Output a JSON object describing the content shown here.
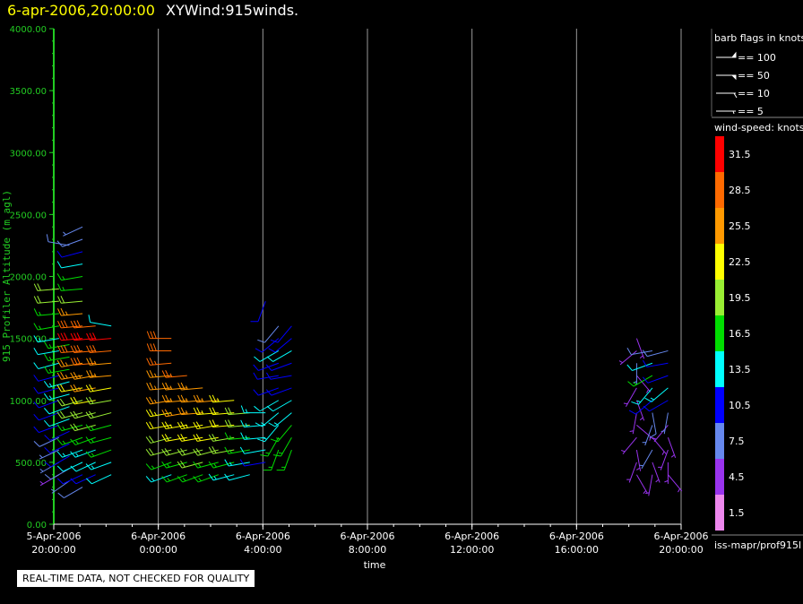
{
  "header": {
    "date_time": "6-apr-2006,20:00:00",
    "product": "XYWind:915winds."
  },
  "footer": {
    "quality_note": "REAL-TIME DATA, NOT CHECKED FOR QUALITY",
    "source": "iss-mapr/prof915l"
  },
  "barb_legend": {
    "title": "barb flags in knots",
    "entries": [
      "== 100",
      "== 50",
      "== 10",
      "== 5"
    ]
  },
  "speed_legend": {
    "title": "wind-speed: knots",
    "bins": [
      {
        "label": "31.5",
        "color": "#ff0000"
      },
      {
        "label": "28.5",
        "color": "#ff6a00"
      },
      {
        "label": "25.5",
        "color": "#ff9900"
      },
      {
        "label": "22.5",
        "color": "#ffff00"
      },
      {
        "label": "19.5",
        "color": "#99ee33"
      },
      {
        "label": "16.5",
        "color": "#00dd00"
      },
      {
        "label": "13.5",
        "color": "#00ffff"
      },
      {
        "label": "10.5",
        "color": "#0000ff"
      },
      {
        "label": "7.5",
        "color": "#6688ee"
      },
      {
        "label": "4.5",
        "color": "#9933ee"
      },
      {
        "label": "1.5",
        "color": "#ee88ee"
      }
    ]
  },
  "colors": {
    "axis_y": "#22cc22",
    "grid": "#999999",
    "background": "#000000"
  },
  "chart_data": {
    "type": "scatter",
    "title": "XYWind:915winds.",
    "xlabel": "time",
    "ylabel": "915 Profiler Altitude (m agl)",
    "y_ticks": [
      "0.00",
      "500.00",
      "1000.00",
      "1500.00",
      "2000.00",
      "2500.00",
      "3000.00",
      "3500.00",
      "4000.00"
    ],
    "ylim": [
      0,
      4000
    ],
    "x_tick_labels": [
      [
        "5-Apr-2006",
        "20:00:00"
      ],
      [
        "6-Apr-2006",
        "0:00:00"
      ],
      [
        "6-Apr-2006",
        "4:00:00"
      ],
      [
        "6-Apr-2006",
        "8:00:00"
      ],
      [
        "6-Apr-2006",
        "12:00:00"
      ],
      [
        "6-Apr-2006",
        "16:00:00"
      ],
      [
        "6-Apr-2006",
        "20:00:00"
      ]
    ],
    "xlim_hours": [
      0,
      24
    ],
    "grid": "vertical lines at x ticks",
    "series": [
      {
        "time_hours": 0.2,
        "altitudes": [
          400,
          500,
          600,
          700,
          800,
          900,
          1000,
          1100,
          1200,
          1300,
          1400,
          1500,
          1600,
          1700,
          1800,
          1900
        ],
        "speeds_kt": [
          5,
          6,
          7,
          8,
          9,
          9,
          10,
          10,
          11,
          12,
          12,
          13,
          15,
          17,
          18,
          19
        ],
        "dirs_deg": [
          240,
          240,
          245,
          245,
          250,
          250,
          250,
          255,
          255,
          255,
          260,
          260,
          260,
          265,
          265,
          265
        ]
      },
      {
        "time_hours": 0.6,
        "altitudes": [
          350,
          450,
          550,
          650,
          750,
          850,
          950,
          1050,
          1150,
          1250,
          1350,
          1450,
          2250
        ],
        "speeds_kt": [
          7,
          8,
          9,
          10,
          11,
          12,
          12,
          13,
          14,
          15,
          16,
          17,
          8
        ],
        "dirs_deg": [
          235,
          240,
          240,
          245,
          245,
          250,
          250,
          255,
          255,
          260,
          260,
          260,
          280
        ]
      },
      {
        "time_hours": 1.1,
        "altitudes": [
          300,
          400,
          500,
          600,
          700,
          800,
          900,
          1000,
          1100,
          1200,
          1300,
          1400,
          1500,
          1600,
          1700,
          1800,
          1900,
          2000,
          2100,
          2200,
          2300,
          2400
        ],
        "speeds_kt": [
          8,
          10,
          12,
          13,
          15,
          16,
          18,
          20,
          22,
          24,
          26,
          28,
          30,
          28,
          25,
          20,
          17,
          15,
          12,
          9,
          8,
          6
        ],
        "dirs_deg": [
          240,
          245,
          245,
          250,
          250,
          255,
          255,
          255,
          260,
          260,
          260,
          265,
          265,
          265,
          265,
          265,
          265,
          260,
          260,
          255,
          250,
          245
        ]
      },
      {
        "time_hours": 1.6,
        "altitudes": [
          400,
          500,
          600,
          700,
          800,
          900,
          1000,
          1100,
          1200,
          1300,
          1400,
          1500,
          1600
        ],
        "speeds_kt": [
          10,
          12,
          14,
          16,
          18,
          20,
          22,
          24,
          26,
          28,
          29,
          30,
          28
        ],
        "dirs_deg": [
          245,
          245,
          250,
          250,
          255,
          255,
          260,
          260,
          260,
          265,
          265,
          265,
          265
        ]
      },
      {
        "time_hours": 2.2,
        "altitudes": [
          400,
          500,
          600,
          700,
          800,
          900,
          1000,
          1100,
          1200,
          1300,
          1400,
          1500,
          1600
        ],
        "speeds_kt": [
          12,
          14,
          15,
          16,
          17,
          18,
          19,
          22,
          24,
          26,
          28,
          30,
          12
        ],
        "dirs_deg": [
          245,
          250,
          250,
          255,
          255,
          255,
          260,
          260,
          265,
          265,
          265,
          265,
          280
        ]
      },
      {
        "time_hours": 4.5,
        "altitudes": [
          400,
          500,
          600,
          700,
          800,
          900,
          1000,
          1100,
          1200,
          1300,
          1400,
          1500
        ],
        "speeds_kt": [
          14,
          16,
          18,
          20,
          22,
          23,
          24,
          25,
          26,
          27,
          28,
          28
        ],
        "dirs_deg": [
          250,
          250,
          255,
          255,
          260,
          260,
          260,
          265,
          265,
          265,
          270,
          270
        ]
      },
      {
        "time_hours": 5.1,
        "altitudes": [
          400,
          500,
          600,
          700,
          800,
          900,
          1000,
          1100,
          1200
        ],
        "speeds_kt": [
          15,
          17,
          19,
          21,
          23,
          24,
          25,
          26,
          27
        ],
        "dirs_deg": [
          250,
          255,
          255,
          260,
          260,
          260,
          265,
          265,
          265
        ]
      },
      {
        "time_hours": 5.7,
        "altitudes": [
          400,
          500,
          600,
          700,
          800,
          900,
          1000,
          1100
        ],
        "speeds_kt": [
          16,
          18,
          20,
          22,
          23,
          24,
          25,
          26
        ],
        "dirs_deg": [
          250,
          255,
          255,
          260,
          260,
          265,
          265,
          265
        ]
      },
      {
        "time_hours": 6.3,
        "altitudes": [
          400,
          500,
          600,
          700,
          800,
          900,
          1000
        ],
        "speeds_kt": [
          15,
          17,
          19,
          21,
          22,
          23,
          24
        ],
        "dirs_deg": [
          250,
          255,
          255,
          260,
          260,
          265,
          265
        ]
      },
      {
        "time_hours": 6.9,
        "altitudes": [
          400,
          500,
          600,
          700,
          800,
          900,
          1000
        ],
        "speeds_kt": [
          14,
          16,
          18,
          20,
          21,
          22,
          23
        ],
        "dirs_deg": [
          255,
          255,
          260,
          260,
          265,
          265,
          265
        ]
      },
      {
        "time_hours": 7.5,
        "altitudes": [
          400,
          500,
          600,
          700,
          800,
          900
        ],
        "speeds_kt": [
          12,
          14,
          16,
          17,
          18,
          19
        ],
        "dirs_deg": [
          255,
          260,
          260,
          265,
          265,
          265
        ]
      },
      {
        "time_hours": 8.1,
        "altitudes": [
          500,
          600,
          700,
          800,
          900,
          1800
        ],
        "speeds_kt": [
          11,
          12,
          13,
          14,
          13,
          10
        ],
        "dirs_deg": [
          260,
          260,
          265,
          265,
          270,
          200
        ]
      },
      {
        "time_hours": 8.6,
        "altitudes": [
          600,
          700,
          800,
          900,
          1000,
          1100,
          1200,
          1300,
          1400,
          1500,
          1600
        ],
        "speeds_kt": [
          15,
          16,
          14,
          13,
          12,
          11,
          10,
          11,
          12,
          10,
          8
        ],
        "dirs_deg": [
          200,
          210,
          220,
          230,
          240,
          250,
          260,
          250,
          240,
          230,
          220
        ]
      },
      {
        "time_hours": 9.1,
        "altitudes": [
          600,
          700,
          800,
          900,
          1000,
          1100,
          1200,
          1300,
          1400,
          1500,
          1600
        ],
        "speeds_kt": [
          16,
          17,
          15,
          14,
          12,
          11,
          10,
          11,
          12,
          10,
          9
        ],
        "dirs_deg": [
          200,
          210,
          220,
          230,
          240,
          250,
          260,
          250,
          240,
          230,
          220
        ]
      },
      {
        "time_hours": 22.3,
        "altitudes": [
          400,
          500,
          600,
          700,
          800,
          900,
          1000,
          1100,
          1200,
          1300,
          1400,
          1500
        ],
        "speeds_kt": [
          4,
          5,
          4,
          3,
          5,
          4,
          3,
          4,
          5,
          6,
          4,
          3
        ],
        "dirs_deg": [
          150,
          200,
          170,
          220,
          130,
          190,
          160,
          210,
          140,
          180,
          230,
          160
        ]
      },
      {
        "time_hours": 22.9,
        "altitudes": [
          400,
          500,
          600,
          700,
          800,
          900,
          1000,
          1100,
          1200,
          1300,
          1400
        ],
        "speeds_kt": [
          5,
          4,
          6,
          5,
          7,
          8,
          10,
          13,
          16,
          12,
          8
        ],
        "dirs_deg": [
          190,
          160,
          210,
          140,
          200,
          170,
          230,
          220,
          240,
          250,
          260
        ]
      },
      {
        "time_hours": 23.5,
        "altitudes": [
          400,
          500,
          600,
          700,
          800,
          900,
          1000,
          1100,
          1200,
          1300,
          1400
        ],
        "speeds_kt": [
          3,
          4,
          5,
          4,
          5,
          6,
          9,
          13,
          11,
          9,
          8
        ],
        "dirs_deg": [
          140,
          180,
          200,
          160,
          220,
          190,
          240,
          230,
          250,
          260,
          255
        ]
      }
    ]
  }
}
